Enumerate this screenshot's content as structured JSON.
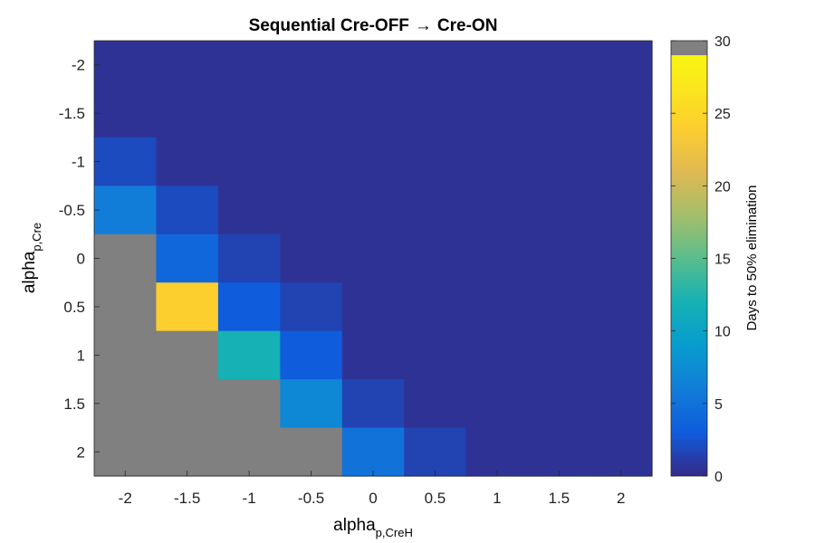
{
  "chart_data": {
    "type": "heatmap",
    "title_prefix": "Sequential Cre-OFF",
    "title_arrow": "→",
    "title_suffix": "Cre-ON",
    "xlabel_main": "alpha",
    "xlabel_sub": "p,CreH",
    "ylabel_main": "alpha",
    "ylabel_sub": "p,Cre",
    "x": [
      -2,
      -1.5,
      -1,
      -0.5,
      0,
      0.5,
      1,
      1.5,
      2
    ],
    "y": [
      -2,
      -1.5,
      -1,
      -0.5,
      0,
      0.5,
      1,
      1.5,
      2
    ],
    "x_tick_labels": [
      "-2",
      "-1.5",
      "-1",
      "-0.5",
      "0",
      "0.5",
      "1",
      "1.5",
      "2"
    ],
    "y_tick_labels": [
      "-2",
      "-1.5",
      "-1",
      "-0.5",
      "0",
      "0.5",
      "1",
      "1.5",
      "2"
    ],
    "note_values": "values[row][col]; rows follow y from -2 (top) to 2 (bottom); null = gray cell",
    "values": [
      [
        0.5,
        0.5,
        0.5,
        0.5,
        0.5,
        0.5,
        0.5,
        0.5,
        0.5
      ],
      [
        0.5,
        0.5,
        0.5,
        0.5,
        0.5,
        0.5,
        0.5,
        0.5,
        0.5
      ],
      [
        2,
        0.5,
        0.5,
        0.5,
        0.5,
        0.5,
        0.5,
        0.5,
        0.5
      ],
      [
        6,
        2,
        0.5,
        0.5,
        0.5,
        0.5,
        0.5,
        0.5,
        0.5
      ],
      [
        null,
        4,
        1.5,
        0.5,
        0.5,
        0.5,
        0.5,
        0.5,
        0.5
      ],
      [
        null,
        24,
        3,
        1.5,
        0.5,
        0.5,
        0.5,
        0.5,
        0.5
      ],
      [
        null,
        null,
        12,
        3,
        0.5,
        0.5,
        0.5,
        0.5,
        0.5
      ],
      [
        null,
        null,
        null,
        7,
        1.5,
        0.5,
        0.5,
        0.5,
        0.5
      ],
      [
        null,
        null,
        null,
        null,
        5,
        1.5,
        0.5,
        0.5,
        0.5
      ]
    ],
    "colorbar": {
      "label": "Days to 50% elimination",
      "range": [
        0,
        30
      ],
      "ticks": [
        0,
        5,
        10,
        15,
        20,
        25,
        30
      ],
      "tick_labels": [
        "0",
        "5",
        "10",
        "15",
        "20",
        "25",
        "30"
      ],
      "nan_color": "#808080",
      "nan_band_value_range": [
        29,
        30
      ]
    }
  }
}
